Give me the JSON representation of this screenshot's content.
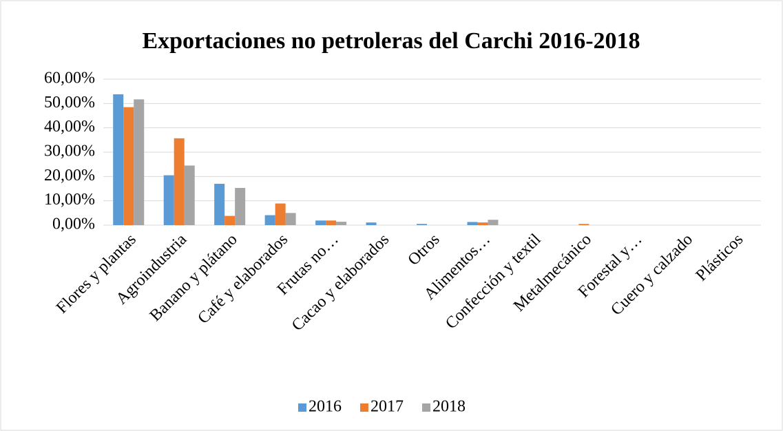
{
  "chart_data": {
    "type": "bar",
    "title": "Exportaciones no petroleras del Carchi 2016-2018",
    "categories": [
      "Flores y plantas",
      "Agroindustria",
      "Banano y plátano",
      "Café y elaborados",
      "Frutas no…",
      "Cacao y elaborados",
      "Otros",
      "Alimentos…",
      "Confección y textil",
      "Metalmecánico",
      "Forestal y…",
      "Cuero y calzado",
      "Plásticos"
    ],
    "series": [
      {
        "name": "2016",
        "color": "#5b9bd5",
        "values": [
          53.8,
          20.5,
          17.0,
          4.1,
          1.9,
          1.1,
          0.5,
          1.3,
          0,
          0,
          0,
          0,
          0
        ]
      },
      {
        "name": "2017",
        "color": "#ed7d31",
        "values": [
          48.5,
          35.7,
          3.8,
          8.9,
          1.9,
          0,
          0,
          1.1,
          0,
          0.5,
          0,
          0,
          0
        ]
      },
      {
        "name": "2018",
        "color": "#a5a5a5",
        "values": [
          51.7,
          24.5,
          15.3,
          5.0,
          1.4,
          0,
          0,
          2.2,
          0,
          0,
          0,
          0,
          0
        ]
      }
    ],
    "ylim": [
      0,
      60
    ],
    "yticks": [
      {
        "value": 0,
        "label": "0,00%"
      },
      {
        "value": 10,
        "label": "10,00%"
      },
      {
        "value": 20,
        "label": "20,00%"
      },
      {
        "value": 30,
        "label": "30,00%"
      },
      {
        "value": 40,
        "label": "40,00%"
      },
      {
        "value": 50,
        "label": "50,00%"
      },
      {
        "value": 60,
        "label": "60,00%"
      }
    ],
    "grid": true,
    "legend": "bottom"
  }
}
